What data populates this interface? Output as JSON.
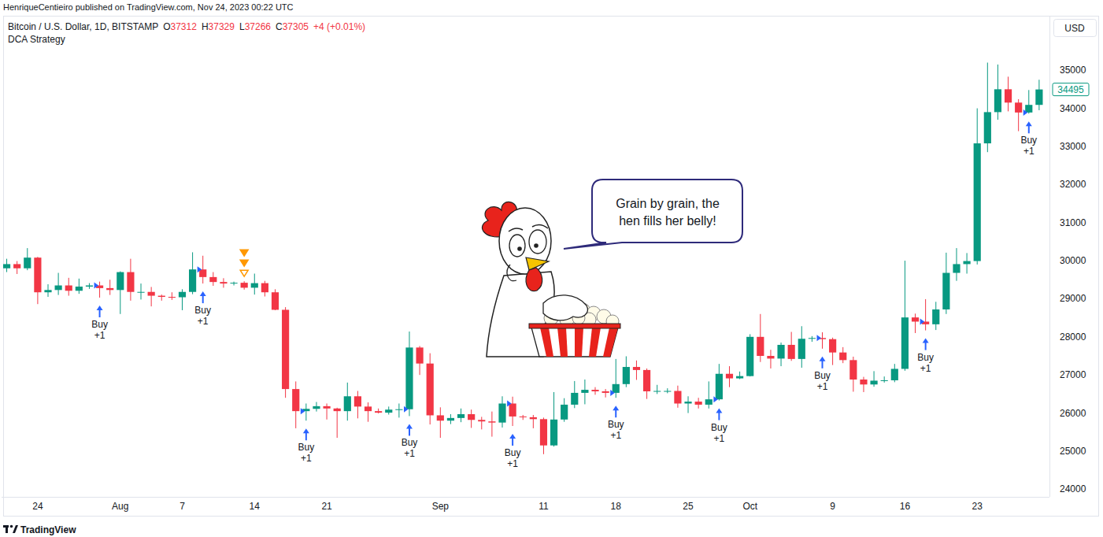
{
  "published": "HenriqueCentieiro published on TradingView.com, Nov 24, 2023 00:22 UTC",
  "footer": "TradingView",
  "speech_bubble": [
    "Grain by grain, the",
    "hen fills her belly!"
  ],
  "chart_data": {
    "type": "candlestick",
    "title": "Bitcoin / U.S. Dollar, 1D, BITSTAMP",
    "subtitle": "DCA Strategy",
    "ohlc_legend": [
      {
        "label": "O",
        "value": "37312"
      },
      {
        "label": "H",
        "value": "37329"
      },
      {
        "label": "L",
        "value": "37266"
      },
      {
        "label": "C",
        "value": "37305"
      }
    ],
    "change": "+4 (+0.01%)",
    "currency": "USD",
    "last_price": 34495,
    "grid": false,
    "ylim": [
      23800,
      36430
    ],
    "yticks": [
      24000,
      25000,
      26000,
      27000,
      28000,
      29000,
      30000,
      31000,
      32000,
      33000,
      34000,
      35000
    ],
    "categories": [
      null,
      null,
      null,
      "24",
      null,
      null,
      null,
      null,
      null,
      null,
      null,
      "Aug",
      null,
      null,
      null,
      null,
      null,
      "7",
      null,
      null,
      null,
      null,
      null,
      null,
      "14",
      null,
      null,
      null,
      null,
      null,
      null,
      "21",
      null,
      null,
      null,
      null,
      null,
      null,
      null,
      null,
      null,
      null,
      "Sep",
      null,
      null,
      null,
      null,
      null,
      null,
      null,
      null,
      null,
      "11",
      null,
      null,
      null,
      null,
      null,
      null,
      "18",
      null,
      null,
      null,
      null,
      null,
      null,
      "25",
      null,
      null,
      null,
      null,
      null,
      "Oct",
      null,
      null,
      null,
      null,
      null,
      null,
      null,
      "9",
      null,
      null,
      null,
      null,
      null,
      null,
      "16",
      null,
      null,
      null,
      null,
      null,
      null,
      "23",
      null,
      null,
      null,
      null,
      null,
      null
    ],
    "open": [
      29800,
      29910,
      29800,
      30080,
      29170,
      29230,
      29350,
      29210,
      29320,
      29350,
      29280,
      29230,
      29700,
      29180,
      29180,
      29080,
      29050,
      29040,
      29180,
      29770,
      29570,
      29440,
      29400,
      29420,
      29290,
      29410,
      29170,
      28710,
      26630,
      26050,
      26110,
      26180,
      26120,
      26050,
      26440,
      26170,
      26050,
      26010,
      26090,
      26100,
      27720,
      27300,
      25940,
      25800,
      25870,
      25970,
      25820,
      25780,
      25750,
      26250,
      25910,
      25890,
      25840,
      25150,
      25830,
      26220,
      26530,
      26610,
      26570,
      26530,
      26760,
      27210,
      27130,
      26570,
      26580,
      26580,
      26250,
      26300,
      26220,
      26360,
      27030,
      26910,
      26970,
      28000,
      27500,
      27430,
      27790,
      27420,
      27950,
      27970,
      27940,
      27590,
      27390,
      26880,
      26750,
      26850,
      26860,
      27160,
      28510,
      28400,
      28330,
      28720,
      29680,
      29910,
      29990,
      33080,
      33900,
      34500,
      34150,
      33890,
      34090
    ],
    "high": [
      30050,
      29990,
      30330,
      30100,
      29380,
      29680,
      29550,
      29530,
      29410,
      29450,
      29500,
      29720,
      30050,
      29400,
      29310,
      29110,
      29170,
      29250,
      30220,
      30130,
      29700,
      29540,
      29450,
      29460,
      29660,
      29470,
      29250,
      28780,
      26830,
      26250,
      26290,
      26250,
      26140,
      26800,
      26580,
      26280,
      26120,
      26170,
      26250,
      28140,
      27760,
      27570,
      26150,
      25970,
      26120,
      26090,
      25900,
      26040,
      26440,
      26430,
      25950,
      25950,
      25880,
      26550,
      26390,
      26840,
      26880,
      26680,
      26630,
      27420,
      27490,
      27380,
      27170,
      26740,
      26650,
      26720,
      26440,
      26400,
      26830,
      27290,
      27230,
      27090,
      28070,
      28600,
      27660,
      27850,
      28130,
      28280,
      28020,
      28120,
      27980,
      27730,
      27480,
      26950,
      27100,
      26960,
      27290,
      30000,
      28610,
      28990,
      28920,
      30210,
      30330,
      30200,
      34000,
      35200,
      35150,
      34830,
      34240,
      34480,
      34750
    ],
    "low": [
      29700,
      29650,
      29750,
      28860,
      29050,
      29100,
      29080,
      29130,
      29260,
      29030,
      29100,
      28600,
      28950,
      28980,
      28800,
      28950,
      28970,
      28700,
      29120,
      29400,
      29340,
      29290,
      29350,
      29240,
      29110,
      29060,
      28700,
      26400,
      25600,
      25800,
      26040,
      25830,
      25350,
      25800,
      25860,
      25770,
      25990,
      25960,
      25880,
      25920,
      27000,
      25700,
      25350,
      25710,
      25760,
      25610,
      25570,
      25380,
      25620,
      25660,
      25820,
      25600,
      24920,
      25120,
      25770,
      26130,
      26230,
      26480,
      26410,
      26400,
      26680,
      26870,
      26370,
      26500,
      26520,
      26140,
      26000,
      26120,
      26120,
      26330,
      26680,
      26890,
      26960,
      27340,
      27170,
      27230,
      27370,
      27190,
      27870,
      27690,
      27260,
      27310,
      26560,
      26550,
      26690,
      26800,
      26810,
      27110,
      28100,
      28170,
      28180,
      28600,
      29470,
      29660,
      29900,
      32850,
      33700,
      33920,
      33400,
      33860,
      33950
    ],
    "close": [
      29910,
      29800,
      30080,
      29170,
      29230,
      29350,
      29210,
      29320,
      29350,
      29280,
      29230,
      29700,
      29180,
      29180,
      29080,
      29050,
      29040,
      29180,
      29770,
      29570,
      29440,
      29400,
      29420,
      29290,
      29410,
      29170,
      28710,
      26630,
      26050,
      26110,
      26180,
      26120,
      26050,
      26440,
      26170,
      26050,
      26010,
      26090,
      26100,
      27720,
      27300,
      25940,
      25800,
      25870,
      25970,
      25820,
      25780,
      25750,
      26250,
      25910,
      25890,
      25840,
      25150,
      25830,
      26220,
      26530,
      26610,
      26570,
      26530,
      26760,
      27210,
      27130,
      26570,
      26580,
      26580,
      26250,
      26300,
      26220,
      26360,
      27030,
      26910,
      26970,
      28000,
      27500,
      27430,
      27790,
      27420,
      27950,
      27970,
      27940,
      27590,
      27390,
      26880,
      26750,
      26850,
      26860,
      27160,
      28510,
      28400,
      28330,
      28720,
      29680,
      29910,
      29990,
      33080,
      33900,
      34500,
      34150,
      33890,
      34090,
      34495
    ],
    "colors": [
      "#089981",
      "#f23645",
      "#089981",
      "#f23645",
      "#089981",
      "#089981",
      "#f23645",
      "#089981",
      "#089981",
      "#f23645",
      "#f23645",
      "#089981",
      "#f23645",
      "#089981",
      "#f23645",
      "#f23645",
      "#f23645",
      "#089981",
      "#089981",
      "#f23645",
      "#f23645",
      "#f23645",
      "#089981",
      "#f23645",
      "#089981",
      "#f23645",
      "#f23645",
      "#f23645",
      "#f23645",
      "#089981",
      "#089981",
      "#f23645",
      "#f23645",
      "#089981",
      "#f23645",
      "#f23645",
      "#f23645",
      "#089981",
      "#089981",
      "#089981",
      "#f23645",
      "#f23645",
      "#f23645",
      "#089981",
      "#089981",
      "#f23645",
      "#f23645",
      "#f23645",
      "#089981",
      "#f23645",
      "#f23645",
      "#f23645",
      "#f23645",
      "#089981",
      "#089981",
      "#089981",
      "#089981",
      "#f23645",
      "#f23645",
      "#089981",
      "#089981",
      "#f23645",
      "#f23645",
      "#089981",
      "#089981",
      "#f23645",
      "#089981",
      "#f23645",
      "#089981",
      "#089981",
      "#f23645",
      "#089981",
      "#089981",
      "#f23645",
      "#f23645",
      "#089981",
      "#f23645",
      "#089981",
      "#089981",
      "#f23645",
      "#f23645",
      "#f23645",
      "#f23645",
      "#f23645",
      "#089981",
      "#089981",
      "#089981",
      "#089981",
      "#f23645",
      "#f23645",
      "#089981",
      "#089981",
      "#089981",
      "#089981",
      "#089981",
      "#089981",
      "#089981",
      "#f23645",
      "#f23645",
      "#089981",
      "#089981"
    ],
    "buy_signals": [
      {
        "index": 9,
        "label": "Buy",
        "qty": "+1"
      },
      {
        "index": 19,
        "label": "Buy",
        "qty": "+1"
      },
      {
        "index": 29,
        "label": "Buy",
        "qty": "+1"
      },
      {
        "index": 39,
        "label": "Buy",
        "qty": "+1"
      },
      {
        "index": 49,
        "label": "Buy",
        "qty": "+1"
      },
      {
        "index": 59,
        "label": "Buy",
        "qty": "+1"
      },
      {
        "index": 69,
        "label": "Buy",
        "qty": "+1"
      },
      {
        "index": 79,
        "label": "Buy",
        "qty": "+1"
      },
      {
        "index": 89,
        "label": "Buy",
        "qty": "+1"
      },
      {
        "index": 99,
        "label": "Buy",
        "qty": "+1"
      }
    ],
    "signal_color": "#2962ff",
    "marker_signals": [
      {
        "index": 23,
        "count": 3,
        "color": "#ff9800"
      }
    ]
  }
}
